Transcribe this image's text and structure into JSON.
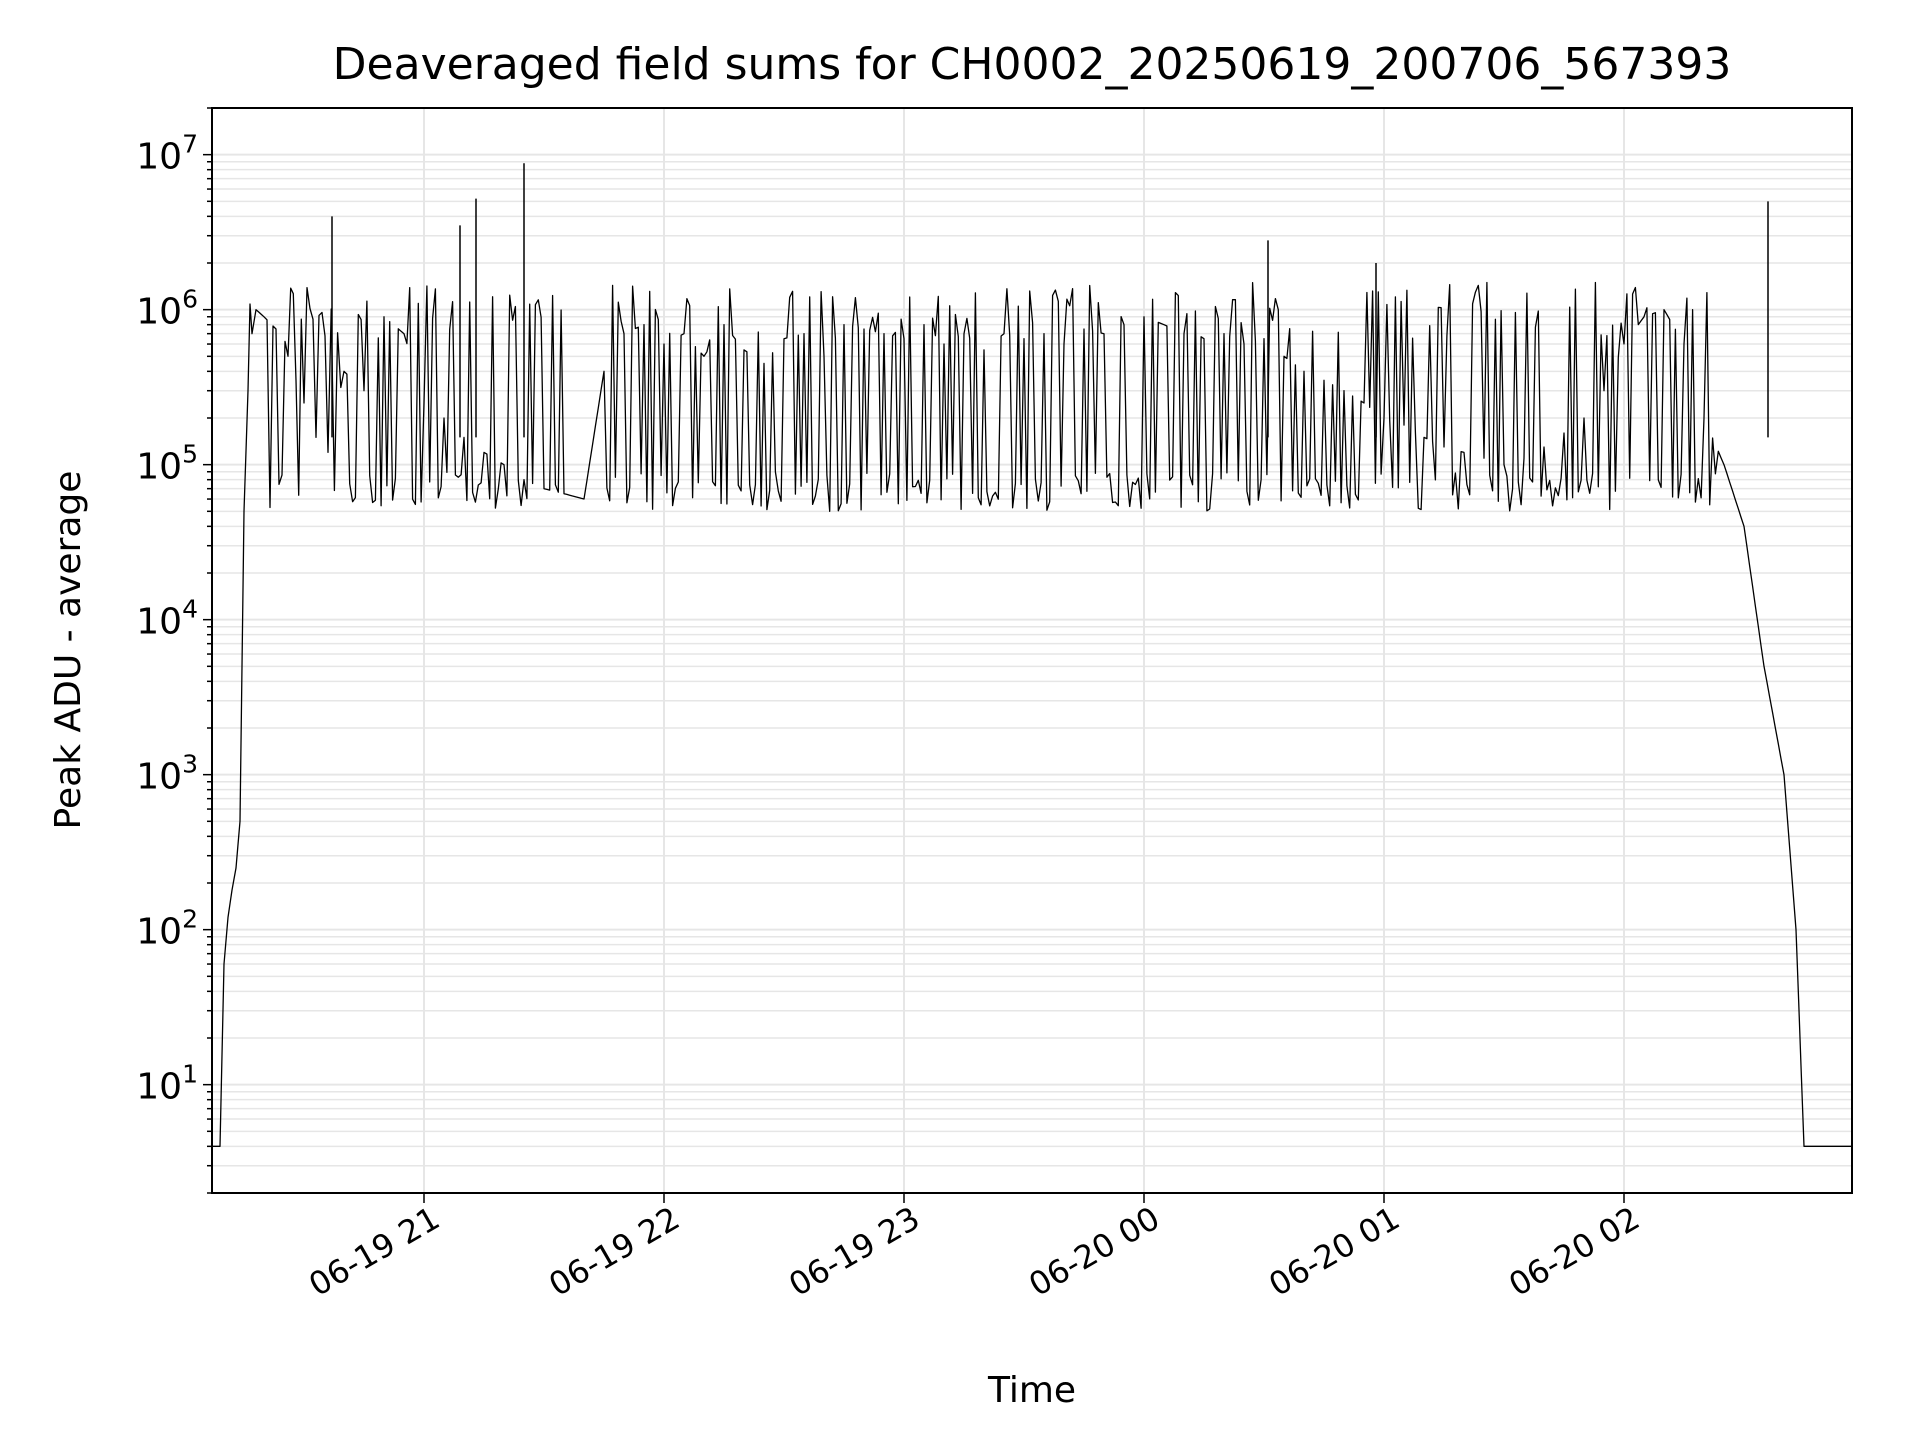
{
  "chart_data": {
    "type": "line",
    "title": "Deaveraged field sums for CH0002_20250619_200706_567393",
    "xlabel": "Time",
    "ylabel": "Peak ADU - average",
    "yscale": "log",
    "ylim": [
      2,
      20000000
    ],
    "xlim": [
      "2025-06-19 20:07",
      "2025-06-20 02:57"
    ],
    "grid": true,
    "line_color": "#000000",
    "grid_color": "#e6e6e6",
    "x_ticks": [
      {
        "at": "2025-06-19 21:00",
        "label": "06-19 21"
      },
      {
        "at": "2025-06-19 22:00",
        "label": "06-19 22"
      },
      {
        "at": "2025-06-19 23:00",
        "label": "06-19 23"
      },
      {
        "at": "2025-06-20 00:00",
        "label": "06-20 00"
      },
      {
        "at": "2025-06-20 01:00",
        "label": "06-20 01"
      },
      {
        "at": "2025-06-20 02:00",
        "label": "06-20 02"
      }
    ],
    "y_ticks": [
      {
        "value": 10,
        "base": "10",
        "exp": "1"
      },
      {
        "value": 100,
        "base": "10",
        "exp": "2"
      },
      {
        "value": 1000,
        "base": "10",
        "exp": "3"
      },
      {
        "value": 10000,
        "base": "10",
        "exp": "4"
      },
      {
        "value": 100000,
        "base": "10",
        "exp": "5"
      },
      {
        "value": 1000000,
        "base": "10",
        "exp": "6"
      },
      {
        "value": 10000000,
        "base": "10",
        "exp": "7"
      }
    ],
    "series": [
      {
        "x": [
          "2025-06-19 20:07",
          "2025-06-19 20:09",
          "2025-06-19 20:10",
          "2025-06-19 20:11",
          "2025-06-19 20:12",
          "2025-06-19 20:13",
          "2025-06-19 20:14",
          "2025-06-19 20:15",
          "2025-06-19 20:16",
          "2025-06-19 20:17",
          "2025-06-19 20:18",
          "2025-06-19 20:20",
          "2025-06-19 20:23",
          "2025-06-19 20:26",
          "2025-06-19 20:28",
          "2025-06-19 20:30",
          "2025-06-19 20:33",
          "2025-06-19 20:36",
          "2025-06-19 20:40",
          "2025-06-19 20:45",
          "2025-06-19 20:50",
          "2025-06-19 20:55",
          "2025-06-19 21:00",
          "2025-06-19 21:05",
          "2025-06-19 21:10",
          "2025-06-19 21:15",
          "2025-06-19 21:20",
          "2025-06-19 21:25",
          "2025-06-19 21:30",
          "2025-06-19 21:35",
          "2025-06-19 21:40",
          "2025-06-19 21:45",
          "2025-06-19 21:50",
          "2025-06-19 21:55",
          "2025-06-19 22:00",
          "2025-06-19 22:05",
          "2025-06-19 22:10",
          "2025-06-19 22:15",
          "2025-06-19 22:20",
          "2025-06-19 22:25",
          "2025-06-19 22:30",
          "2025-06-19 22:35",
          "2025-06-19 22:40",
          "2025-06-19 22:45",
          "2025-06-19 22:50",
          "2025-06-19 22:55",
          "2025-06-19 23:00",
          "2025-06-19 23:05",
          "2025-06-19 23:10",
          "2025-06-19 23:15",
          "2025-06-19 23:20",
          "2025-06-19 23:25",
          "2025-06-19 23:30",
          "2025-06-19 23:35",
          "2025-06-19 23:40",
          "2025-06-19 23:45",
          "2025-06-19 23:50",
          "2025-06-19 23:55",
          "2025-06-20 00:00",
          "2025-06-20 00:05",
          "2025-06-20 00:10",
          "2025-06-20 00:15",
          "2025-06-20 00:20",
          "2025-06-20 00:25",
          "2025-06-20 00:30",
          "2025-06-20 00:35",
          "2025-06-20 00:40",
          "2025-06-20 00:45",
          "2025-06-20 00:50",
          "2025-06-20 00:55",
          "2025-06-20 01:00",
          "2025-06-20 01:05",
          "2025-06-20 01:10",
          "2025-06-20 01:15",
          "2025-06-20 01:20",
          "2025-06-20 01:25",
          "2025-06-20 01:30",
          "2025-06-20 01:35",
          "2025-06-20 01:40",
          "2025-06-20 01:45",
          "2025-06-20 01:50",
          "2025-06-20 01:55",
          "2025-06-20 02:00",
          "2025-06-20 02:05",
          "2025-06-20 02:10",
          "2025-06-20 02:15",
          "2025-06-20 02:20",
          "2025-06-20 02:25",
          "2025-06-20 02:30",
          "2025-06-20 02:35",
          "2025-06-20 02:40",
          "2025-06-20 02:43",
          "2025-06-20 02:45",
          "2025-06-20 02:47",
          "2025-06-20 02:48",
          "2025-06-20 02:49",
          "2025-06-20 02:50",
          "2025-06-20 02:52",
          "2025-06-20 02:57"
        ],
        "y": [
          4,
          4,
          60,
          120,
          180,
          250,
          500,
          50000,
          300000,
          700000,
          1000000,
          900000,
          750000,
          500000,
          350000,
          250000,
          150000,
          120000,
          400000,
          300000,
          900000,
          700000,
          250000,
          200000,
          150000,
          120000,
          100000,
          80000,
          70000,
          65000,
          60000,
          400000,
          700000,
          800000,
          600000,
          700000,
          500000,
          800000,
          550000,
          450000,
          650000,
          700000,
          500000,
          800000,
          750000,
          700000,
          650000,
          800000,
          600000,
          700000,
          550000,
          700000,
          650000,
          700000,
          600000,
          750000,
          700000,
          800000,
          900000,
          800000,
          700000,
          650000,
          700000,
          600000,
          650000,
          500000,
          400000,
          350000,
          300000,
          250000,
          200000,
          180000,
          150000,
          130000,
          120000,
          110000,
          100000,
          110000,
          130000,
          160000,
          200000,
          300000,
          600000,
          900000,
          1000000,
          600000,
          200000,
          100000,
          40000,
          5000,
          1000,
          100,
          4,
          4,
          4,
          4,
          4,
          4,
          4
        ],
        "spikes": [
          {
            "x": "2025-06-19 20:37",
            "y": 4000000
          },
          {
            "x": "2025-06-19 21:09",
            "y": 3500000
          },
          {
            "x": "2025-06-19 21:13",
            "y": 5200000
          },
          {
            "x": "2025-06-19 21:25",
            "y": 8800000
          },
          {
            "x": "2025-06-20 00:31",
            "y": 2800000
          },
          {
            "x": "2025-06-20 00:58",
            "y": 2000000
          },
          {
            "x": "2025-06-20 02:36",
            "y": 5000000
          }
        ]
      }
    ]
  }
}
